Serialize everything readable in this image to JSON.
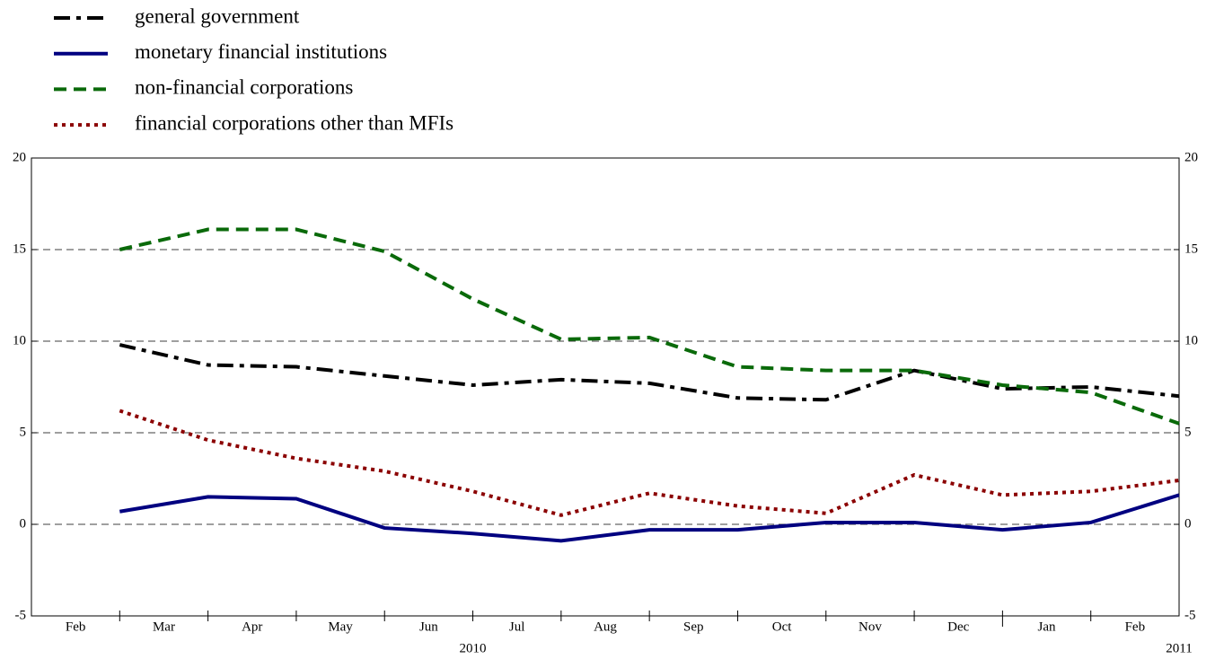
{
  "chart_data": {
    "type": "line",
    "categories": [
      "Feb",
      "Mar",
      "Apr",
      "May",
      "Jun",
      "Jul",
      "Aug",
      "Sep",
      "Oct",
      "Nov",
      "Dec",
      "Jan",
      "Feb"
    ],
    "year_labels": [
      "2010",
      "2011"
    ],
    "series": [
      {
        "name": "general government",
        "color": "#000000",
        "style": "dashdot",
        "values": [
          9.8,
          8.7,
          8.6,
          8.1,
          7.6,
          7.9,
          7.7,
          6.9,
          6.8,
          8.4,
          7.4,
          7.5,
          7.0
        ]
      },
      {
        "name": "monetary financial institutions",
        "color": "#000080",
        "style": "solid",
        "values": [
          0.7,
          1.5,
          1.4,
          -0.2,
          -0.5,
          -0.9,
          -0.3,
          -0.3,
          0.1,
          0.1,
          -0.3,
          0.1,
          1.6
        ]
      },
      {
        "name": "non-financial corporations",
        "color": "#0a6a0a",
        "style": "dashed",
        "values": [
          15.0,
          16.1,
          16.1,
          14.9,
          12.3,
          10.1,
          10.2,
          8.6,
          8.4,
          8.4,
          7.6,
          7.2,
          5.5
        ]
      },
      {
        "name": "financial corporations other than MFIs",
        "color": "#8b0000",
        "style": "dotted",
        "values": [
          6.2,
          4.6,
          3.6,
          2.9,
          1.8,
          0.5,
          1.7,
          1.0,
          0.6,
          2.7,
          1.6,
          1.8,
          2.4
        ]
      }
    ],
    "ylim": [
      -5,
      20
    ],
    "yticks": [
      -5,
      0,
      5,
      10,
      15,
      20
    ],
    "grid": true
  }
}
